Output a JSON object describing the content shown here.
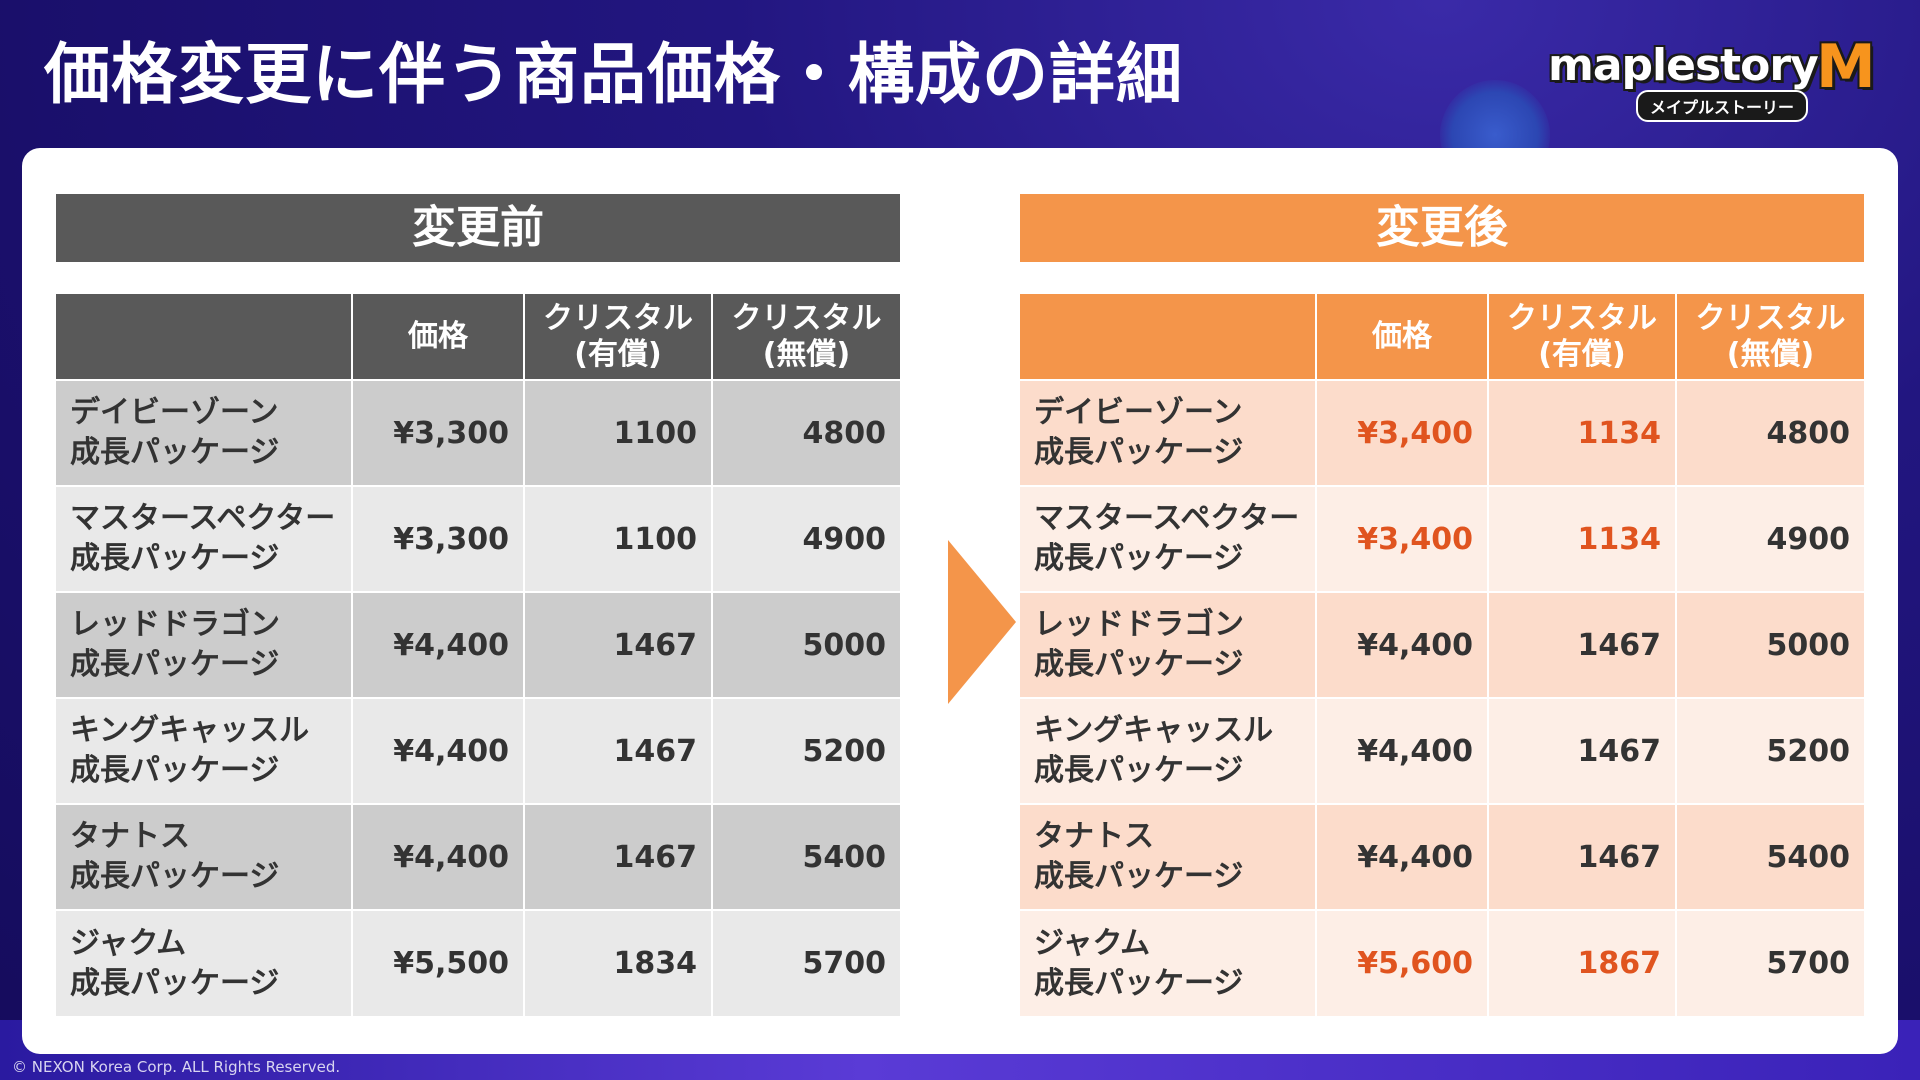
{
  "title": "価格変更に伴う商品価格・構成の詳細",
  "logo": {
    "word": "maplestory",
    "mark": "M",
    "sub": "メイプルストーリー"
  },
  "copyright": "© NEXON Korea Corp. ALL Rights Reserved.",
  "columns": {
    "price": "価格",
    "crystal_paid_l1": "クリスタル",
    "crystal_paid_l2": "(有償)",
    "crystal_free_l1": "クリスタル",
    "crystal_free_l2": "(無償)"
  },
  "before": {
    "header": "変更前",
    "rows": [
      {
        "name1": "デイビーゾーン",
        "name2": "成長パッケージ",
        "price": "¥3,300",
        "paid": "1100",
        "free": "4800"
      },
      {
        "name1": "マスタースペクター",
        "name2": "成長パッケージ",
        "price": "¥3,300",
        "paid": "1100",
        "free": "4900"
      },
      {
        "name1": "レッドドラゴン",
        "name2": "成長パッケージ",
        "price": "¥4,400",
        "paid": "1467",
        "free": "5000"
      },
      {
        "name1": "キングキャッスル",
        "name2": "成長パッケージ",
        "price": "¥4,400",
        "paid": "1467",
        "free": "5200"
      },
      {
        "name1": "タナトス",
        "name2": "成長パッケージ",
        "price": "¥4,400",
        "paid": "1467",
        "free": "5400"
      },
      {
        "name1": "ジャクム",
        "name2": "成長パッケージ",
        "price": "¥5,500",
        "paid": "1834",
        "free": "5700"
      }
    ]
  },
  "after": {
    "header": "変更後",
    "rows": [
      {
        "name1": "デイビーゾーン",
        "name2": "成長パッケージ",
        "price": "¥3,400",
        "paid": "1134",
        "free": "4800"
      },
      {
        "name1": "マスタースペクター",
        "name2": "成長パッケージ",
        "price": "¥3,400",
        "paid": "1134",
        "free": "4900"
      },
      {
        "name1": "レッドドラゴン",
        "name2": "成長パッケージ",
        "price": "¥4,400",
        "paid": "1467",
        "free": "5000"
      },
      {
        "name1": "キングキャッスル",
        "name2": "成長パッケージ",
        "price": "¥4,400",
        "paid": "1467",
        "free": "5200"
      },
      {
        "name1": "タナトス",
        "name2": "成長パッケージ",
        "price": "¥4,400",
        "paid": "1467",
        "free": "5400"
      },
      {
        "name1": "ジャクム",
        "name2": "成長パッケージ",
        "price": "¥5,600",
        "paid": "1867",
        "free": "5700"
      }
    ]
  },
  "colors": {
    "changed": "#e0541f",
    "accent": "#f4954a",
    "before_header": "#595959"
  }
}
